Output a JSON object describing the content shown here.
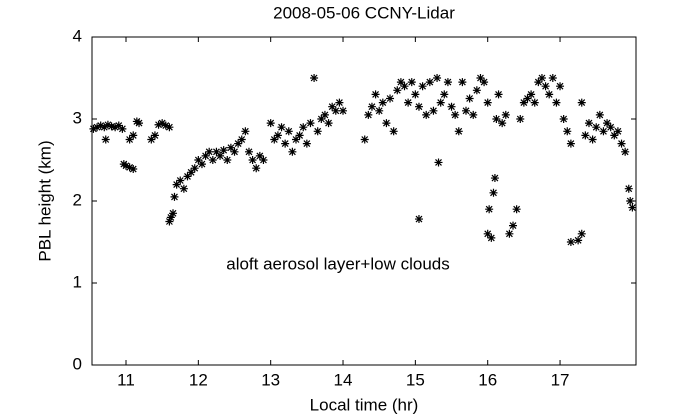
{
  "chart_data": {
    "type": "scatter",
    "title": "2008-05-06 CCNY-Lidar",
    "x_label": "Local time (hr)",
    "y_label": "PBL height (km)",
    "annotation": "aloft aerosol layer+low clouds",
    "xlim": [
      10.53,
      18.05
    ],
    "ylim": [
      0,
      4
    ],
    "xticks": [
      11,
      12,
      13,
      14,
      15,
      16,
      17
    ],
    "yticks": [
      0,
      1,
      2,
      3,
      4
    ],
    "grid": false,
    "color": "#000000",
    "x": [
      10.55,
      10.6,
      10.65,
      10.7,
      10.75,
      10.8,
      10.85,
      10.9,
      10.95,
      10.72,
      10.97,
      11.0,
      11.05,
      11.1,
      11.05,
      11.1,
      11.15,
      11.18,
      11.35,
      11.4,
      11.45,
      11.5,
      11.55,
      11.6,
      11.6,
      11.62,
      11.65,
      11.67,
      11.7,
      11.75,
      11.8,
      11.85,
      11.9,
      11.95,
      12.0,
      12.05,
      12.1,
      12.15,
      12.2,
      12.25,
      12.3,
      12.35,
      12.4,
      12.45,
      12.5,
      12.55,
      12.6,
      12.65,
      12.7,
      12.75,
      12.8,
      12.85,
      12.9,
      13.0,
      13.05,
      13.1,
      13.15,
      13.2,
      13.25,
      13.3,
      13.35,
      13.4,
      13.45,
      13.5,
      13.55,
      13.6,
      13.65,
      13.7,
      13.75,
      13.8,
      13.85,
      13.9,
      13.95,
      14.0,
      14.3,
      14.35,
      14.4,
      14.45,
      14.5,
      14.55,
      14.6,
      14.65,
      14.7,
      14.75,
      14.8,
      14.85,
      14.9,
      14.95,
      15.0,
      15.05,
      15.05,
      15.1,
      15.15,
      15.2,
      15.25,
      15.3,
      15.32,
      15.35,
      15.4,
      15.45,
      15.5,
      15.55,
      15.6,
      15.65,
      15.7,
      15.75,
      15.8,
      15.85,
      15.9,
      15.95,
      16.0,
      16.02,
      16.0,
      16.05,
      16.08,
      16.1,
      16.12,
      16.15,
      16.2,
      16.25,
      16.3,
      16.35,
      16.4,
      16.45,
      16.5,
      16.55,
      16.6,
      16.65,
      16.7,
      16.75,
      16.8,
      16.85,
      16.9,
      16.95,
      17.0,
      17.05,
      17.1,
      17.15,
      17.15,
      17.25,
      17.3,
      17.3,
      17.35,
      17.4,
      17.45,
      17.5,
      17.55,
      17.6,
      17.65,
      17.7,
      17.75,
      17.8,
      17.85,
      17.9,
      17.95,
      17.97,
      18.0
    ],
    "values": [
      2.88,
      2.9,
      2.92,
      2.9,
      2.93,
      2.91,
      2.9,
      2.92,
      2.88,
      2.75,
      2.45,
      2.43,
      2.41,
      2.39,
      2.75,
      2.8,
      2.97,
      2.95,
      2.75,
      2.8,
      2.93,
      2.95,
      2.92,
      2.9,
      1.75,
      1.8,
      1.85,
      2.05,
      2.2,
      2.25,
      2.15,
      2.3,
      2.35,
      2.4,
      2.5,
      2.45,
      2.55,
      2.6,
      2.5,
      2.6,
      2.55,
      2.62,
      2.5,
      2.65,
      2.6,
      2.7,
      2.75,
      2.85,
      2.6,
      2.5,
      2.4,
      2.55,
      2.5,
      2.95,
      2.75,
      2.8,
      2.9,
      2.7,
      2.85,
      2.6,
      2.75,
      2.8,
      2.9,
      2.7,
      2.95,
      3.5,
      2.85,
      3.0,
      3.05,
      2.95,
      3.15,
      3.1,
      3.2,
      3.1,
      2.75,
      3.05,
      3.15,
      3.3,
      3.1,
      3.2,
      2.95,
      3.25,
      2.85,
      3.35,
      3.45,
      3.4,
      3.2,
      3.45,
      3.3,
      1.78,
      3.15,
      3.4,
      3.05,
      3.45,
      3.1,
      3.5,
      2.47,
      3.2,
      3.3,
      3.45,
      3.15,
      3.05,
      2.85,
      3.45,
      3.1,
      3.25,
      3.05,
      3.35,
      3.5,
      3.45,
      3.2,
      1.9,
      1.6,
      1.55,
      2.1,
      2.28,
      3.0,
      3.3,
      2.95,
      3.05,
      1.6,
      1.7,
      1.9,
      3.0,
      3.2,
      3.25,
      3.3,
      3.2,
      3.45,
      3.5,
      3.4,
      3.3,
      3.5,
      3.2,
      3.4,
      3.0,
      2.85,
      2.7,
      1.5,
      1.52,
      1.6,
      3.2,
      2.8,
      2.95,
      2.75,
      2.9,
      3.05,
      2.85,
      2.95,
      2.9,
      2.8,
      2.85,
      2.7,
      2.6,
      2.15,
      2.0,
      1.92
    ]
  }
}
